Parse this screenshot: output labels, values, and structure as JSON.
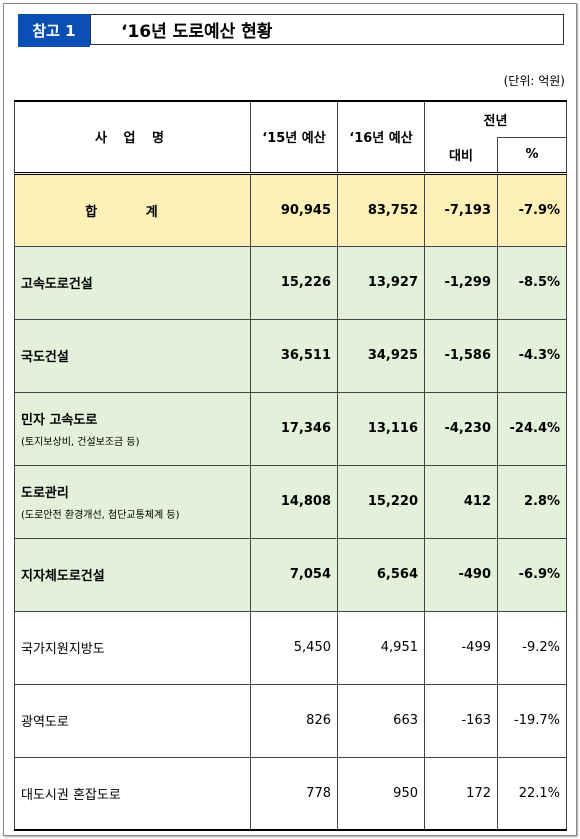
{
  "header": {
    "badge": "참고 1",
    "title": "‘16년 도로예산 현황"
  },
  "unit": "(단위: 억원)",
  "table": {
    "columns": {
      "name": "사 업 명",
      "budget_2015": "‘15년 예산",
      "budget_2016": "‘16년 예산",
      "change": "전년",
      "change_diff": "대비",
      "change_pct": "%"
    },
    "rows": [
      {
        "name": "합 계",
        "budget_2015": "90,945",
        "budget_2016": "83,752",
        "diff": "-7,193",
        "pct": "-7.9%"
      },
      {
        "name": "고속도로건설",
        "budget_2015": "15,226",
        "budget_2016": "13,927",
        "diff": "-1,299",
        "pct": "-8.5%"
      },
      {
        "name": "국도건설",
        "budget_2015": "36,511",
        "budget_2016": "34,925",
        "diff": "-1,586",
        "pct": "-4.3%"
      },
      {
        "name": "민자 고속도로",
        "note": "(토지보상비, 건설보조금 등)",
        "budget_2015": "17,346",
        "budget_2016": "13,116",
        "diff": "-4,230",
        "pct": "-24.4%"
      },
      {
        "name": "도로관리",
        "note": "(도로안전 환경개선, 첨단교통체계 등)",
        "budget_2015": "14,808",
        "budget_2016": "15,220",
        "diff": "412",
        "pct": "2.8%"
      },
      {
        "name": "지자체도로건설",
        "budget_2015": "7,054",
        "budget_2016": "6,564",
        "diff": "-490",
        "pct": "-6.9%"
      },
      {
        "name": "국가지원지방도",
        "budget_2015": "5,450",
        "budget_2016": "4,951",
        "diff": "-499",
        "pct": "-9.2%"
      },
      {
        "name": "광역도로",
        "budget_2015": "826",
        "budget_2016": "663",
        "diff": "-163",
        "pct": "-19.7%"
      },
      {
        "name": "대도시권 혼잡도로",
        "budget_2015": "778",
        "budget_2016": "950",
        "diff": "172",
        "pct": "22.1%"
      }
    ]
  }
}
